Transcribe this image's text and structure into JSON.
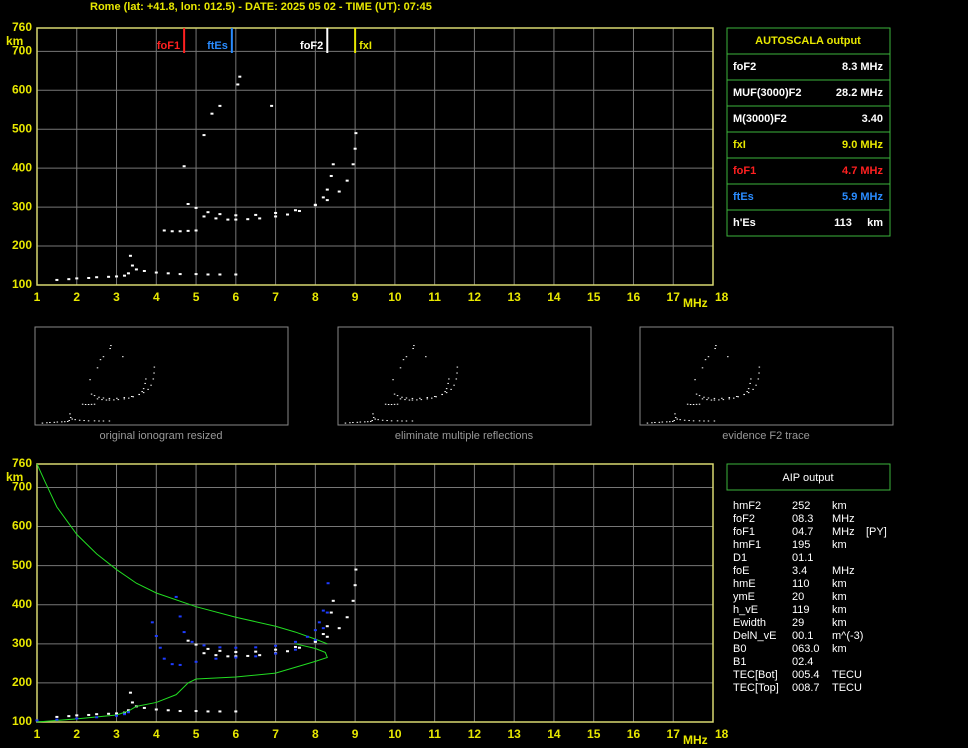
{
  "header": {
    "title": "Rome (lat: +41.8, lon: 012.5) - DATE: 2025 05 02 - TIME (UT): 07:45"
  },
  "chart_data": [
    {
      "type": "scatter",
      "xlabel": "MHz",
      "ylabel": "km",
      "xlim": [
        1,
        18
      ],
      "ylim": [
        100,
        760
      ],
      "xticks": [
        1,
        2,
        3,
        4,
        5,
        6,
        7,
        8,
        9,
        10,
        11,
        12,
        13,
        14,
        15,
        16,
        17,
        18
      ],
      "yticks": [
        100,
        200,
        300,
        400,
        500,
        600,
        700,
        760
      ],
      "grid": true,
      "markers": [
        {
          "label": "foF1",
          "value": 4.7,
          "color": "#ff2020"
        },
        {
          "label": "ftEs",
          "value": 5.9,
          "color": "#2a8cff"
        },
        {
          "label": "foF2",
          "value": 8.3,
          "color": "#ffffff"
        },
        {
          "label": "fxI",
          "value": 9.0,
          "color": "#e8e800"
        }
      ],
      "series": [
        {
          "color": "#ffffff",
          "mode": "points",
          "x": [
            1.5,
            1.8,
            2,
            2.3,
            2.5,
            2.8,
            3,
            3.2,
            3.3,
            3.35,
            3.4,
            3.5,
            3.7,
            4,
            4.3,
            4.6,
            5,
            5.3,
            5.6,
            6
          ],
          "values": [
            113,
            115,
            117,
            118,
            120,
            121,
            122,
            124,
            130,
            175,
            150,
            140,
            136,
            132,
            130,
            128,
            128,
            127,
            127,
            127
          ]
        },
        {
          "color": "#ffffff",
          "mode": "points",
          "x": [
            5.2,
            5.5,
            5.8,
            6,
            6.3,
            6.6,
            7,
            7.3,
            7.6,
            8,
            8.2,
            8.3,
            8.4,
            8.45
          ],
          "values": [
            276,
            271,
            268,
            268,
            269,
            271,
            276,
            281,
            290,
            306,
            325,
            345,
            380,
            410
          ]
        },
        {
          "color": "#ffffff",
          "mode": "points",
          "x": [
            4.8,
            5,
            5.3,
            5.6,
            6,
            6.5,
            7,
            7.5,
            8,
            8.3,
            8.6,
            8.8,
            8.95,
            9,
            9.02
          ],
          "values": [
            308,
            298,
            287,
            282,
            279,
            280,
            285,
            292,
            305,
            318,
            340,
            368,
            410,
            450,
            490
          ]
        },
        {
          "color": "#ffffff",
          "mode": "points",
          "x": [
            4.2,
            4.4,
            4.6,
            4.8,
            5,
            4.7,
            5.2,
            5.4,
            5.6,
            6.05,
            6.1,
            6.9
          ],
          "values": [
            240,
            238,
            238,
            239,
            240,
            405,
            485,
            540,
            560,
            615,
            635,
            560
          ]
        }
      ]
    },
    {
      "type": "scatter",
      "xlabel": "MHz",
      "ylabel": "km",
      "xlim": [
        1,
        18
      ],
      "ylim": [
        100,
        760
      ],
      "xticks": [
        1,
        2,
        3,
        4,
        5,
        6,
        7,
        8,
        9,
        10,
        11,
        12,
        13,
        14,
        15,
        16,
        17,
        18
      ],
      "yticks": [
        100,
        200,
        300,
        400,
        500,
        600,
        700,
        760
      ],
      "grid": true,
      "series": [
        {
          "color": "#ffffff",
          "mode": "points",
          "x": [
            1.5,
            1.8,
            2,
            2.3,
            2.5,
            2.8,
            3,
            3.2,
            3.3,
            3.35,
            3.4,
            3.5,
            3.7,
            4,
            4.3,
            4.6,
            5,
            5.3,
            5.6,
            6
          ],
          "values": [
            113,
            115,
            117,
            118,
            120,
            121,
            122,
            124,
            130,
            175,
            150,
            140,
            136,
            132,
            130,
            128,
            128,
            127,
            127,
            127
          ]
        },
        {
          "color": "#ffffff",
          "mode": "points",
          "x": [
            5.2,
            5.5,
            5.8,
            6,
            6.3,
            6.6,
            7,
            7.3,
            7.6,
            8,
            8.2,
            8.3,
            8.4,
            8.45
          ],
          "values": [
            276,
            271,
            268,
            268,
            269,
            271,
            276,
            281,
            290,
            306,
            325,
            345,
            380,
            410
          ]
        },
        {
          "color": "#ffffff",
          "mode": "points",
          "x": [
            4.8,
            5,
            5.3,
            5.6,
            6,
            6.5,
            7,
            7.5,
            8,
            8.3,
            8.6,
            8.8,
            8.95,
            9,
            9.02
          ],
          "values": [
            308,
            298,
            287,
            282,
            279,
            280,
            285,
            292,
            305,
            318,
            340,
            368,
            410,
            450,
            490
          ]
        },
        {
          "color": "#22dd22",
          "mode": "line",
          "x": [
            1,
            1.2,
            1.5,
            2,
            2.5,
            3,
            3.5,
            4,
            5,
            6,
            7,
            7.5,
            8,
            8.3
          ],
          "values": [
            760,
            715,
            650,
            580,
            530,
            490,
            455,
            430,
            395,
            368,
            345,
            330,
            312,
            300
          ]
        },
        {
          "color": "#22dd22",
          "mode": "line",
          "x": [
            1,
            2,
            3,
            3.3,
            3.5,
            4,
            4.5,
            4.8,
            5,
            6,
            7,
            7.5,
            8,
            8.3,
            8.25,
            8,
            7.5
          ],
          "values": [
            100,
            108,
            118,
            128,
            140,
            150,
            170,
            200,
            210,
            215,
            225,
            240,
            255,
            265,
            278,
            288,
            300
          ]
        },
        {
          "color": "#1e3cff",
          "mode": "points",
          "x": [
            1,
            1.5,
            2,
            2.5,
            3,
            3.2,
            3.3,
            3.9,
            4,
            4.1,
            4.2,
            4.4,
            4.6,
            5,
            5.5,
            6,
            6.5,
            7,
            7.5,
            8,
            8.2,
            8.3,
            8.32
          ],
          "values": [
            104,
            106,
            109,
            112,
            116,
            120,
            125,
            355,
            320,
            290,
            262,
            248,
            246,
            254,
            262,
            265,
            268,
            275,
            285,
            310,
            340,
            380,
            455
          ]
        },
        {
          "color": "#1e3cff",
          "mode": "points",
          "x": [
            4.5,
            4.6,
            4.7,
            4.9,
            5.2,
            5.6,
            6,
            6.5,
            7,
            7.5,
            7.8,
            8,
            8.1,
            8.2
          ],
          "values": [
            420,
            370,
            330,
            305,
            296,
            291,
            290,
            291,
            295,
            305,
            318,
            335,
            355,
            385
          ]
        }
      ]
    }
  ],
  "thumbnails": [
    {
      "caption": "original ionogram resized"
    },
    {
      "caption": "eliminate multiple reflections"
    },
    {
      "caption": "evidence F2 trace"
    }
  ],
  "autoscala": {
    "title": "AUTOSCALA output",
    "rows": [
      {
        "label": "foF2",
        "value": "8.3 MHz",
        "color": "#ffffff"
      },
      {
        "label": "MUF(3000)F2",
        "value": "28.2 MHz",
        "color": "#ffffff"
      },
      {
        "label": "M(3000)F2",
        "value": "3.40",
        "color": "#ffffff"
      },
      {
        "label": "fxI",
        "value": "9.0 MHz",
        "color": "#e8e800"
      },
      {
        "label": "foF1",
        "value": "4.7 MHz",
        "color": "#ff2020"
      },
      {
        "label": "ftEs",
        "value": "5.9 MHz",
        "color": "#2a8cff"
      },
      {
        "label": "h'Es",
        "value": "113     km",
        "color": "#ffffff"
      }
    ]
  },
  "aip": {
    "title": "AIP output",
    "rows": [
      [
        "hmF2",
        "252",
        "km"
      ],
      [
        "foF2",
        "08.3",
        "MHz"
      ],
      [
        "foF1",
        "04.7",
        "MHz",
        "[PY]"
      ],
      [
        "hmF1",
        "195",
        "km"
      ],
      [
        "D1",
        "01.1"
      ],
      [
        "foE",
        "3.4",
        "MHz"
      ],
      [
        "hmE",
        "110",
        "km"
      ],
      [
        "ymE",
        "20",
        "km"
      ],
      [
        "h_vE",
        "119",
        "km"
      ],
      [
        "Ewidth",
        "29",
        "km"
      ],
      [
        "DelN_vE",
        "00.1",
        "m^(-3)"
      ],
      [
        "B0",
        "063.0",
        "km"
      ],
      [
        "B1",
        "02.4"
      ],
      [
        "TEC[Bot]",
        "005.4",
        "TECU"
      ],
      [
        "TEC[Top]",
        "008.7",
        "TECU"
      ]
    ]
  }
}
